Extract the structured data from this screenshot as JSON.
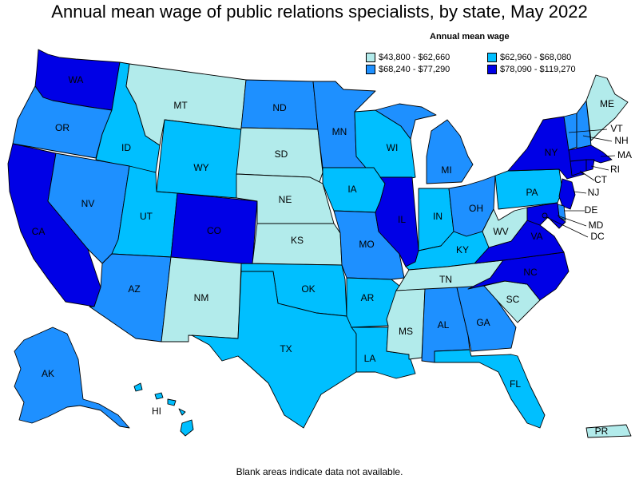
{
  "title": "Annual mean wage of public relations specialists, by state, May 2022",
  "footnote": "Blank areas indicate data not available.",
  "legend": {
    "title": "Annual mean wage",
    "bins": [
      {
        "label": "$43,800 - $62,660",
        "color": "#b2ebeb"
      },
      {
        "label": "$62,960 - $68,080",
        "color": "#00bfff"
      },
      {
        "label": "$68,240 - $77,290",
        "color": "#1e90ff"
      },
      {
        "label": "$78,090 - $119,270",
        "color": "#0000e6"
      }
    ]
  },
  "states": [
    {
      "abbr": "WA",
      "bin": 3
    },
    {
      "abbr": "OR",
      "bin": 2
    },
    {
      "abbr": "CA",
      "bin": 3
    },
    {
      "abbr": "ID",
      "bin": 1
    },
    {
      "abbr": "NV",
      "bin": 2
    },
    {
      "abbr": "MT",
      "bin": 0
    },
    {
      "abbr": "WY",
      "bin": 1
    },
    {
      "abbr": "UT",
      "bin": 1
    },
    {
      "abbr": "AZ",
      "bin": 2
    },
    {
      "abbr": "CO",
      "bin": 3
    },
    {
      "abbr": "NM",
      "bin": 0
    },
    {
      "abbr": "ND",
      "bin": 2
    },
    {
      "abbr": "SD",
      "bin": 0
    },
    {
      "abbr": "NE",
      "bin": 0
    },
    {
      "abbr": "KS",
      "bin": 0
    },
    {
      "abbr": "OK",
      "bin": 1
    },
    {
      "abbr": "TX",
      "bin": 1
    },
    {
      "abbr": "MN",
      "bin": 2
    },
    {
      "abbr": "IA",
      "bin": 1
    },
    {
      "abbr": "MO",
      "bin": 2
    },
    {
      "abbr": "AR",
      "bin": 1
    },
    {
      "abbr": "LA",
      "bin": 1
    },
    {
      "abbr": "WI",
      "bin": 1
    },
    {
      "abbr": "IL",
      "bin": 3
    },
    {
      "abbr": "MI",
      "bin": 2
    },
    {
      "abbr": "IN",
      "bin": 1
    },
    {
      "abbr": "OH",
      "bin": 2
    },
    {
      "abbr": "KY",
      "bin": 1
    },
    {
      "abbr": "TN",
      "bin": 0
    },
    {
      "abbr": "MS",
      "bin": 0
    },
    {
      "abbr": "AL",
      "bin": 2
    },
    {
      "abbr": "GA",
      "bin": 2
    },
    {
      "abbr": "FL",
      "bin": 1
    },
    {
      "abbr": "SC",
      "bin": 0
    },
    {
      "abbr": "NC",
      "bin": 3
    },
    {
      "abbr": "VA",
      "bin": 3
    },
    {
      "abbr": "WV",
      "bin": 0
    },
    {
      "abbr": "PA",
      "bin": 1
    },
    {
      "abbr": "NY",
      "bin": 3
    },
    {
      "abbr": "VT",
      "bin": 2
    },
    {
      "abbr": "NH",
      "bin": 2
    },
    {
      "abbr": "ME",
      "bin": 0
    },
    {
      "abbr": "MA",
      "bin": 3
    },
    {
      "abbr": "RI",
      "bin": 3
    },
    {
      "abbr": "CT",
      "bin": 3
    },
    {
      "abbr": "NJ",
      "bin": 3
    },
    {
      "abbr": "DE",
      "bin": 2
    },
    {
      "abbr": "MD",
      "bin": 3
    },
    {
      "abbr": "DC",
      "bin": 3
    },
    {
      "abbr": "AK",
      "bin": 2
    },
    {
      "abbr": "HI",
      "bin": 1
    },
    {
      "abbr": "PR",
      "bin": 0
    }
  ]
}
